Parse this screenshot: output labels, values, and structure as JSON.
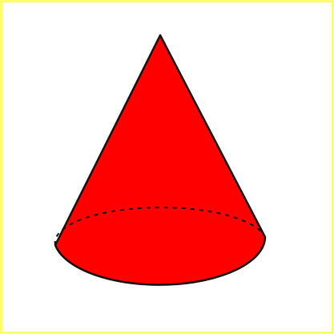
{
  "figure": {
    "subject": "cone",
    "fill_color": "#ff0000",
    "stroke_color": "#111111",
    "frame_color": "#ffff66",
    "background_color": "#ffffff"
  }
}
